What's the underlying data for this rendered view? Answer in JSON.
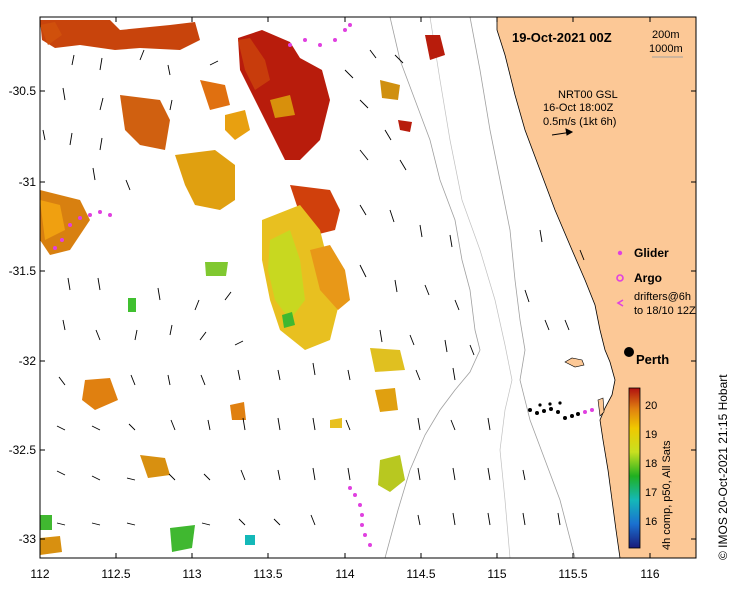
{
  "map": {
    "title": "19-Oct-2021 00Z",
    "depth_legend": [
      "200m",
      "1000m"
    ],
    "current_source": "NRT00 GSL",
    "current_time": "16-Oct 18:00Z",
    "current_scale": "0.5m/s (1kt 6h)",
    "lon_ticks": [
      "112",
      "112.5",
      "113",
      "113.5",
      "114",
      "114.5",
      "115",
      "115.5",
      "116"
    ],
    "lat_ticks": [
      "-30.5",
      "-31",
      "-31.5",
      "-32",
      "-32.5",
      "-33"
    ],
    "city": "Perth",
    "credit": "©  IMOS 20-Oct-2021 21:15 Hobart",
    "colors": {
      "land": "#fcc896",
      "ocean": "#ffffff",
      "argo": "#e040e0"
    }
  },
  "legend": {
    "glider": "Glider",
    "argo": "Argo",
    "drifters_line1": "drifters@6h",
    "drifters_line2": "to 18/10 12Z"
  },
  "colorbar": {
    "label": "4h comp, p50, All Sats",
    "ticks": [
      "16",
      "17",
      "18",
      "19",
      "20"
    ],
    "min": 15.5,
    "max": 20.5
  }
}
